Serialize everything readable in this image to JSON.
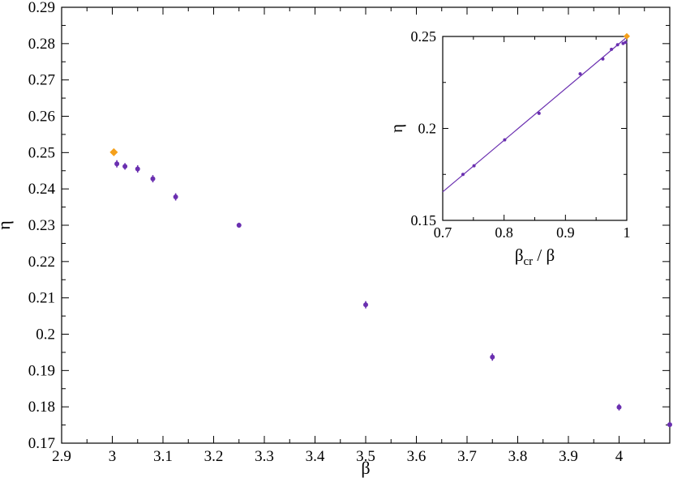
{
  "chart_data": [
    {
      "type": "scatter",
      "title": "",
      "xlabel": "β",
      "ylabel": "η",
      "xlim": [
        2.9,
        4.1
      ],
      "ylim": [
        0.17,
        0.29
      ],
      "xticks": [
        "2.9",
        "3",
        "3.1",
        "3.2",
        "3.3",
        "3.4",
        "3.5",
        "3.6",
        "3.7",
        "3.8",
        "3.9",
        "4"
      ],
      "yticks": [
        "0.17",
        "0.18",
        "0.19",
        "0.2",
        "0.21",
        "0.22",
        "0.23",
        "0.24",
        "0.25",
        "0.26",
        "0.27",
        "0.28",
        "0.29"
      ],
      "series": [
        {
          "color": "#6a2fb0",
          "marker": "circle",
          "points": [
            {
              "x": 3.009,
              "y": 0.2469,
              "err": 0.001
            },
            {
              "x": 3.025,
              "y": 0.2462,
              "err": 0.0009
            },
            {
              "x": 3.05,
              "y": 0.2455,
              "err": 0.001
            },
            {
              "x": 3.08,
              "y": 0.2428,
              "err": 0.001
            },
            {
              "x": 3.125,
              "y": 0.2378,
              "err": 0.001
            },
            {
              "x": 3.25,
              "y": 0.23,
              "err": 0.0007
            },
            {
              "x": 3.5,
              "y": 0.2081,
              "err": 0.001
            },
            {
              "x": 3.75,
              "y": 0.1937,
              "err": 0.001
            },
            {
              "x": 4.0,
              "y": 0.1799,
              "err": 0.0009
            },
            {
              "x": 4.1,
              "y": 0.1751,
              "err": 0.0006
            }
          ]
        },
        {
          "color": "#f5a01a",
          "marker": "diamond",
          "points": [
            {
              "x": 3.003,
              "y": 0.2501,
              "err": 0
            }
          ]
        }
      ]
    },
    {
      "type": "scatter",
      "title": "",
      "xlabel": "β",
      "xlabel_sub": "cr",
      "xlabel_rest": " / β",
      "ylabel": "η",
      "xlim": [
        0.7,
        1.0
      ],
      "ylim": [
        0.15,
        0.25
      ],
      "xticks": [
        "0.7",
        "0.8",
        "0.9",
        "1"
      ],
      "yticks": [
        "0.15",
        "0.2",
        "0.25"
      ],
      "series": [
        {
          "color": "#6a2fb0",
          "marker": "circle",
          "points": [
            {
              "x": 0.733,
              "y": 0.175
            },
            {
              "x": 0.751,
              "y": 0.1797
            },
            {
              "x": 0.801,
              "y": 0.1938
            },
            {
              "x": 0.857,
              "y": 0.2082
            },
            {
              "x": 0.924,
              "y": 0.2297
            },
            {
              "x": 0.961,
              "y": 0.2378
            },
            {
              "x": 0.975,
              "y": 0.243
            },
            {
              "x": 0.985,
              "y": 0.2455
            },
            {
              "x": 0.994,
              "y": 0.2462
            },
            {
              "x": 0.998,
              "y": 0.2468
            }
          ]
        },
        {
          "color": "#f5a01a",
          "marker": "diamond",
          "points": [
            {
              "x": 1.0,
              "y": 0.2501
            }
          ]
        }
      ],
      "fit_line": {
        "color": "#6a2fb0",
        "points": [
          {
            "x": 0.7,
            "y": 0.1655
          },
          {
            "x": 1.0,
            "y": 0.2496
          }
        ]
      }
    }
  ]
}
